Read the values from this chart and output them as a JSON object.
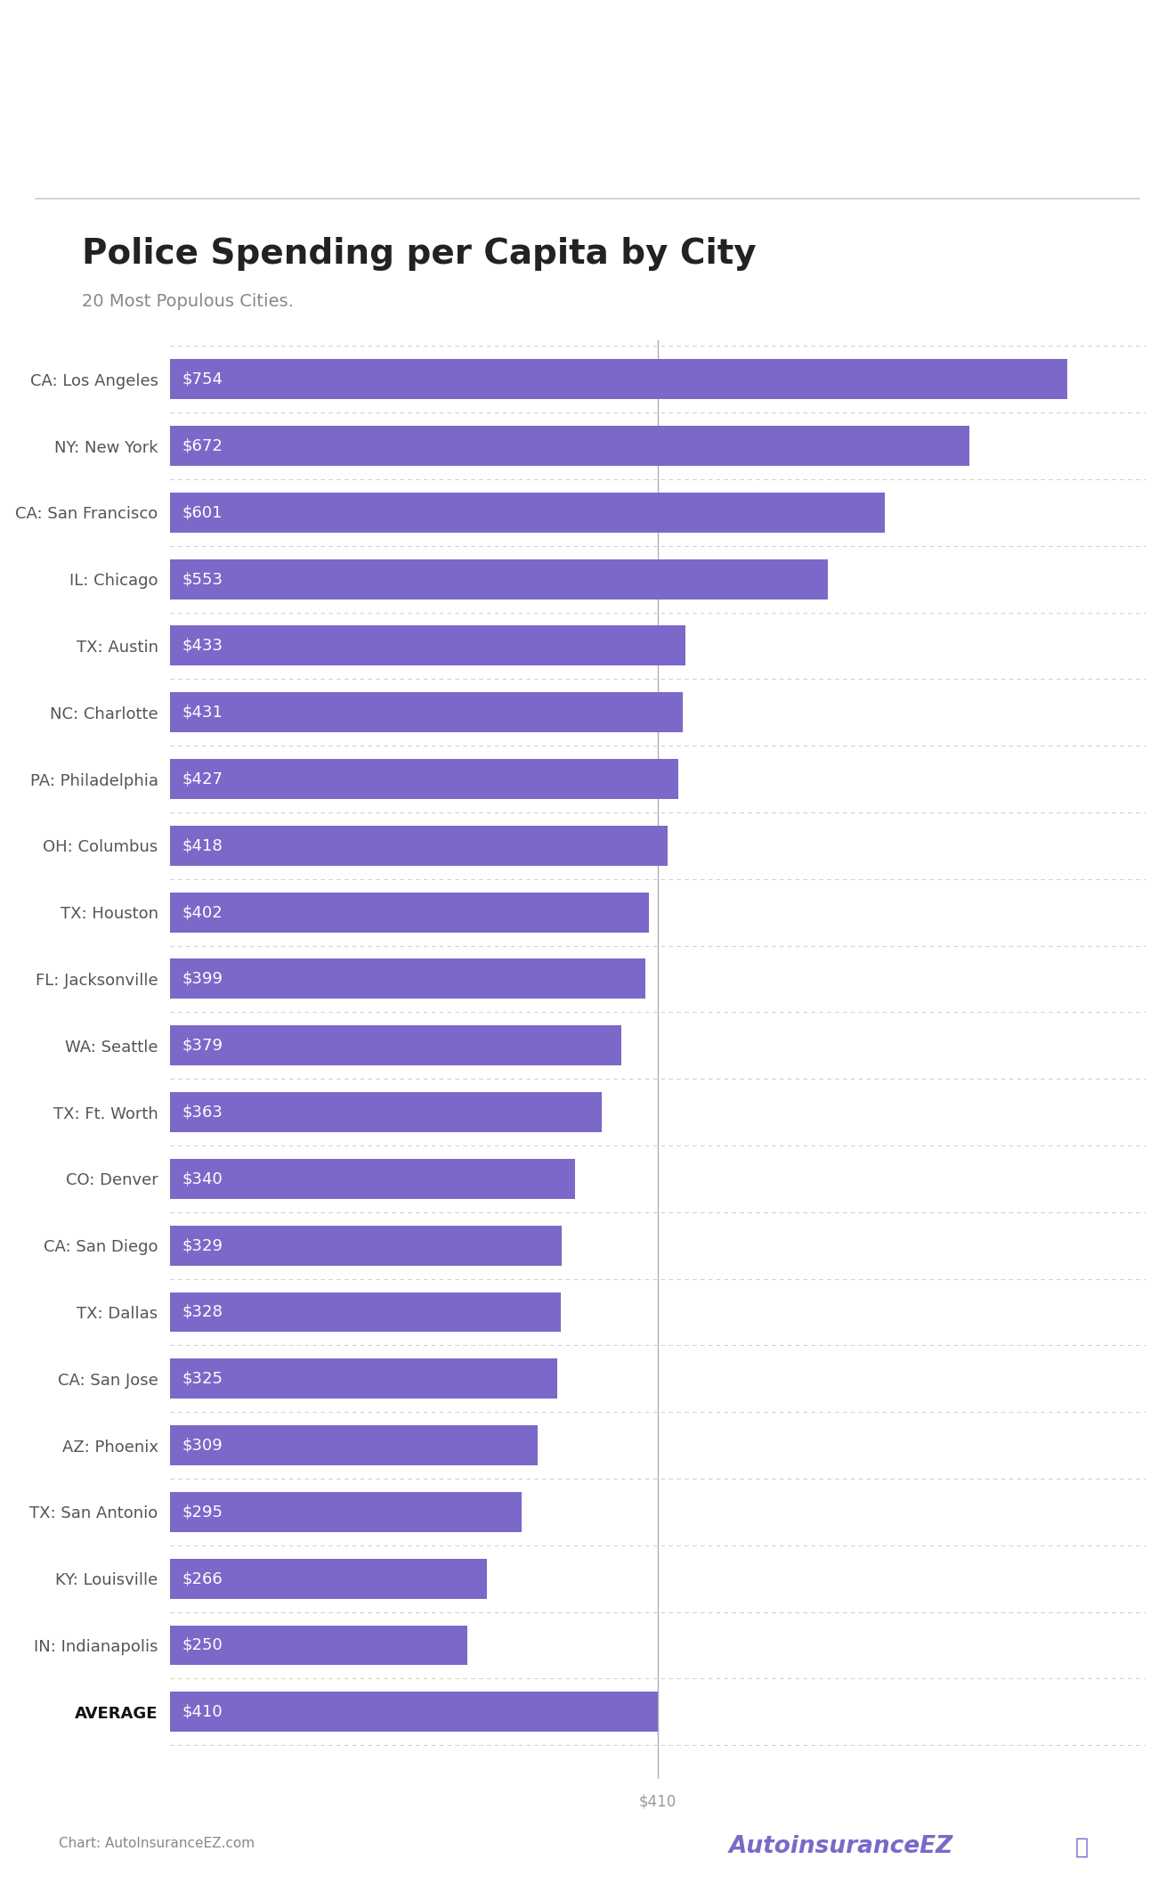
{
  "title": "Police Spending per Capita by City",
  "subtitle": "20 Most Populous Cities.",
  "categories": [
    "CA: Los Angeles",
    "NY: New York",
    "CA: San Francisco",
    "IL: Chicago",
    "TX: Austin",
    "NC: Charlotte",
    "PA: Philadelphia",
    "OH: Columbus",
    "TX: Houston",
    "FL: Jacksonville",
    "WA: Seattle",
    "TX: Ft. Worth",
    "CO: Denver",
    "CA: San Diego",
    "TX: Dallas",
    "CA: San Jose",
    "AZ: Phoenix",
    "TX: San Antonio",
    "KY: Louisville",
    "IN: Indianapolis",
    "AVERAGE"
  ],
  "values": [
    754,
    672,
    601,
    553,
    433,
    431,
    427,
    418,
    402,
    399,
    379,
    363,
    340,
    329,
    328,
    325,
    309,
    295,
    266,
    250,
    410
  ],
  "bar_color": "#7B68C8",
  "average_line_value": 410,
  "average_line_color": "#999999",
  "label_color": "#ffffff",
  "category_color": "#555555",
  "title_color": "#222222",
  "subtitle_color": "#888888",
  "background_color": "#ffffff",
  "separator_color": "#cccccc",
  "chart_source": "Chart: AutoInsuranceEZ.com",
  "xlim": [
    0,
    820
  ],
  "bar_height": 0.6,
  "label_fontsize": 13,
  "category_fontsize": 13,
  "title_fontsize": 28,
  "subtitle_fontsize": 14
}
